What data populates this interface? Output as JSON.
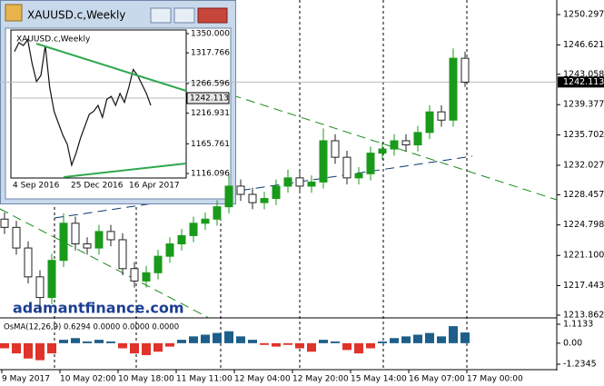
{
  "window": {
    "title": "XAUUSD.c,Weekly"
  },
  "main": {
    "ylim": [
      1213.53,
      1252.06
    ],
    "yticks": [
      1250.297,
      1246.621,
      1243.058,
      1239.377,
      1235.702,
      1232.027,
      1228.457,
      1224.798,
      {
        "value": 1221.1,
        "label": "1221.100"
      },
      1217.443,
      1213.862
    ],
    "current_price": 1242.113,
    "xlabels": [
      "9 May 2017",
      "10 May 02:00",
      "10 May 18:00",
      "11 May 11:00",
      "12 May 04:00",
      "12 May 20:00",
      "15 May 14:00",
      "16 May 07:00",
      "17 May 00:00"
    ],
    "watermark": "adamantfinance.com",
    "candles": {
      "open": [
        1225.5,
        1224.5,
        1222.0,
        1218.5,
        1216.0,
        1220.5,
        1225.0,
        1222.5,
        1222.0,
        1224.0,
        1223.0,
        1219.5,
        1218.0,
        1219.0,
        1221.0,
        1222.5,
        1223.5,
        1225.0,
        1225.5,
        1227.0,
        1229.5,
        1228.5,
        1227.5,
        1228.0,
        1229.5,
        1230.5,
        1229.5,
        1230.0,
        1235.0,
        1233.0,
        1230.5,
        1231.0,
        1233.5,
        1234.0,
        1235.0,
        1234.5,
        1236.0,
        1238.5,
        1237.5,
        1245.0
      ],
      "high": [
        1226.3,
        1225.3,
        1222.8,
        1219.3,
        1221.3,
        1226.2,
        1225.8,
        1223.3,
        1224.8,
        1224.8,
        1223.8,
        1220.3,
        1219.8,
        1221.8,
        1223.3,
        1224.3,
        1225.8,
        1226.3,
        1227.8,
        1230.9,
        1230.3,
        1229.3,
        1228.8,
        1230.3,
        1231.5,
        1231.3,
        1230.8,
        1236.5,
        1235.8,
        1233.8,
        1231.8,
        1234.3,
        1234.8,
        1235.8,
        1235.8,
        1236.8,
        1239.3,
        1239.3,
        1246.2,
        1245.8
      ],
      "low": [
        1223.7,
        1221.2,
        1217.7,
        1214.5,
        1215.2,
        1219.7,
        1221.7,
        1221.2,
        1221.2,
        1222.2,
        1218.7,
        1217.2,
        1217.2,
        1218.2,
        1220.2,
        1221.7,
        1222.7,
        1224.2,
        1224.7,
        1226.2,
        1227.7,
        1226.7,
        1226.7,
        1227.2,
        1228.7,
        1228.7,
        1228.7,
        1229.2,
        1232.2,
        1229.7,
        1229.7,
        1230.2,
        1232.7,
        1233.2,
        1233.7,
        1233.7,
        1235.2,
        1236.7,
        1236.7,
        1241.5
      ],
      "close": [
        1224.5,
        1222.0,
        1218.5,
        1216.0,
        1220.5,
        1225.0,
        1222.5,
        1222.0,
        1224.0,
        1223.0,
        1219.5,
        1218.0,
        1219.0,
        1221.0,
        1222.5,
        1223.5,
        1225.0,
        1225.5,
        1227.0,
        1229.5,
        1228.5,
        1227.5,
        1228.0,
        1229.5,
        1230.5,
        1229.5,
        1230.0,
        1235.0,
        1233.0,
        1230.5,
        1231.0,
        1233.5,
        1234.0,
        1235.0,
        1234.5,
        1236.0,
        1238.5,
        1237.5,
        1245.0,
        1242.1
      ]
    }
  },
  "osma": {
    "label": "OsMA(12,26,9) 0.6294 0.0000 0.0000 0.0000",
    "ylim": [
      -1.501,
      1.38
    ],
    "yticks": [
      1.1133,
      {
        "value": 0,
        "label": "0.00"
      },
      -1.2345
    ],
    "values": [
      -0.3,
      -0.6,
      -0.9,
      -1.0,
      -0.6,
      0.2,
      0.3,
      0.1,
      0.2,
      0.1,
      -0.3,
      -0.6,
      -0.7,
      -0.5,
      -0.2,
      0.2,
      0.4,
      0.5,
      0.6,
      0.7,
      0.4,
      0.2,
      -0.1,
      -0.2,
      -0.1,
      -0.3,
      -0.5,
      0.2,
      0.1,
      -0.4,
      -0.6,
      -0.3,
      0.1,
      0.3,
      0.4,
      0.5,
      0.6,
      0.4,
      1.0,
      0.6294
    ]
  },
  "inset": {
    "label": "XAUUSD.c,Weekly",
    "ylim": [
      1108.5,
      1356.08
    ],
    "yticks": [
      {
        "value": 1350,
        "label": "1350.000"
      },
      1317.766,
      1266.596,
      1216.931,
      1165.761,
      1116.096
    ],
    "current_price": 1242.113,
    "xlabels": [
      "4 Sep 2016",
      "25 Dec 2016",
      "16 Apr 2017"
    ],
    "closes": [
      1320,
      1335,
      1330,
      1340,
      1300,
      1270,
      1280,
      1330,
      1260,
      1220,
      1200,
      1180,
      1165,
      1130,
      1150,
      1175,
      1195,
      1215,
      1220,
      1230,
      1210,
      1240,
      1245,
      1230,
      1250,
      1235,
      1260,
      1290,
      1280,
      1265,
      1250,
      1230
    ]
  }
}
